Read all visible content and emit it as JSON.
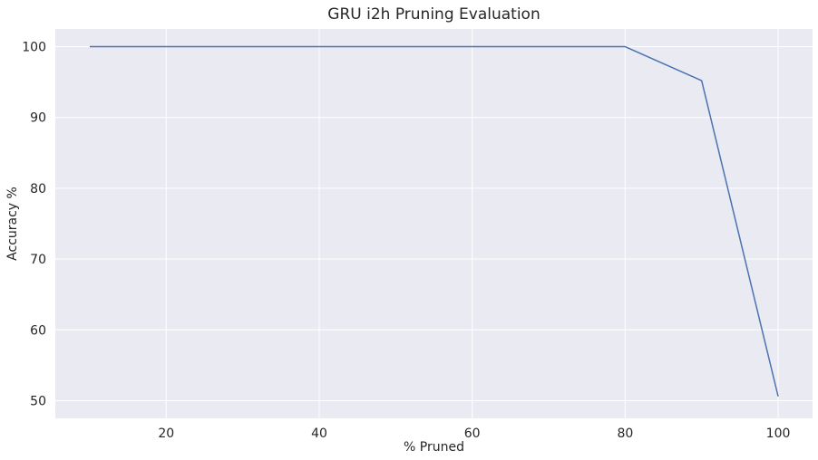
{
  "chart_data": {
    "type": "line",
    "title": "GRU i2h Pruning Evaluation",
    "xlabel": "% Pruned",
    "ylabel": "Accuracy %",
    "x": [
      10,
      20,
      30,
      40,
      50,
      60,
      70,
      80,
      90,
      100
    ],
    "series": [
      {
        "name": "Accuracy",
        "values": [
          100,
          100,
          100,
          100,
          100,
          100,
          100,
          100,
          95.2,
          50.6
        ],
        "color": "#4c72b0"
      }
    ],
    "xlim": [
      5.5,
      104.5
    ],
    "ylim": [
      47.5,
      102.5
    ],
    "xticks": [
      20,
      40,
      60,
      80,
      100
    ],
    "yticks": [
      50,
      60,
      70,
      80,
      90,
      100
    ],
    "grid": true,
    "background_color": "#eaeaf2",
    "grid_color": "#ffffff"
  }
}
